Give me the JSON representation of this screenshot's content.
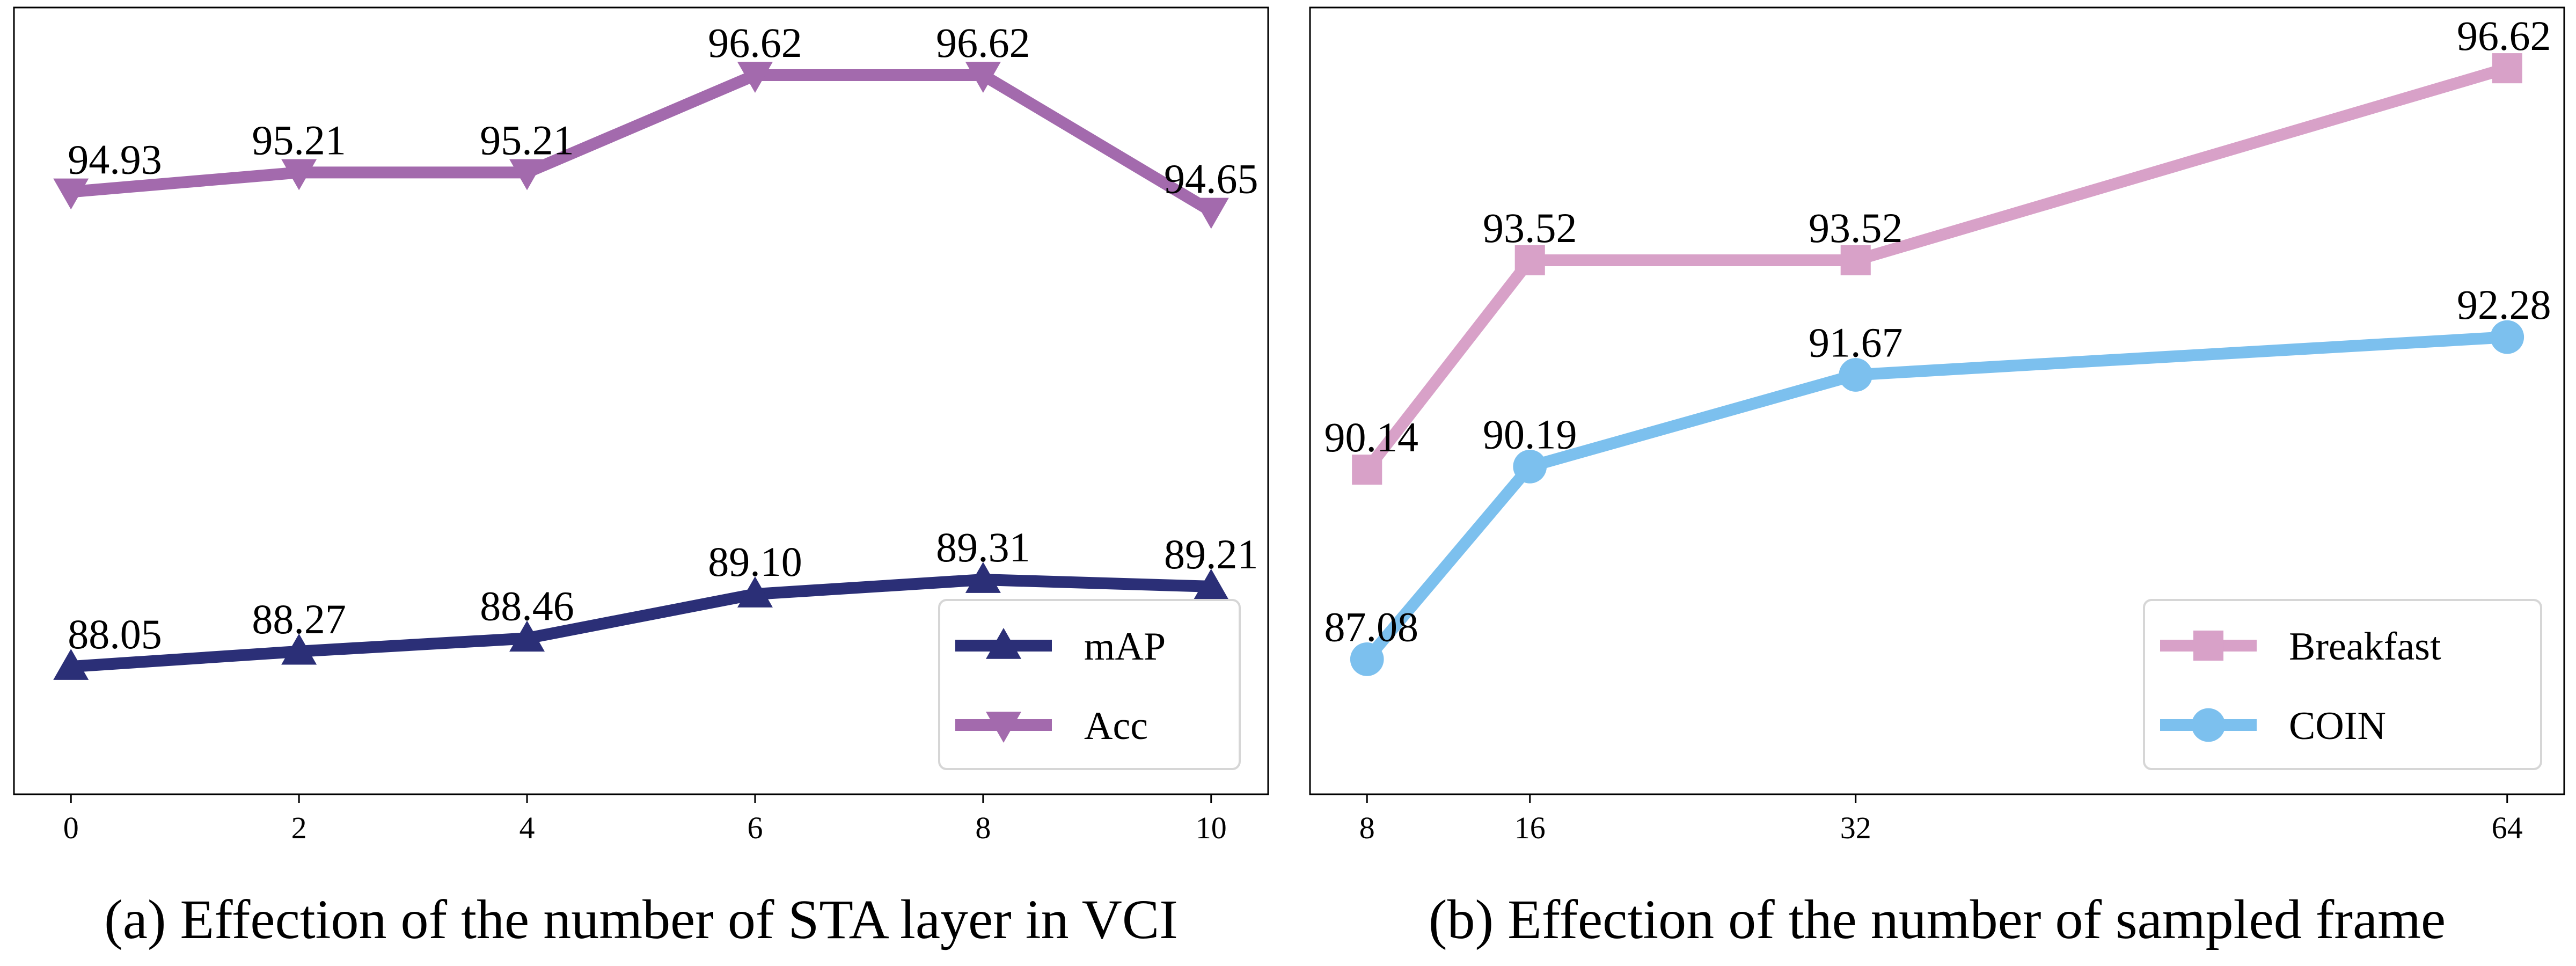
{
  "chart_data": [
    {
      "type": "line",
      "caption": "(a) Effection of the number of STA layer in VCI",
      "x": [
        0,
        2,
        4,
        6,
        8,
        10
      ],
      "xlim": [
        -0.5,
        10.5
      ],
      "ylim": [
        86.2,
        97.6
      ],
      "grid": false,
      "legend_position": "lower-right",
      "series": [
        {
          "name": "mAP",
          "color": "#2b2f77",
          "marker": "triangle-up",
          "values": [
            88.05,
            88.27,
            88.46,
            89.1,
            89.31,
            89.21
          ],
          "labels": [
            "88.05",
            "88.27",
            "88.46",
            "89.10",
            "89.31",
            "89.21"
          ]
        },
        {
          "name": "Acc",
          "color": "#a36aad",
          "marker": "triangle-down",
          "values": [
            94.93,
            95.21,
            95.21,
            96.62,
            96.62,
            94.65
          ],
          "labels": [
            "94.93",
            "95.21",
            "95.21",
            "96.62",
            "96.62",
            "94.65"
          ]
        }
      ]
    },
    {
      "type": "line",
      "caption": "(b) Effection of the number of sampled frame",
      "x": [
        8,
        16,
        32,
        64
      ],
      "xlim": [
        5.2,
        66.8
      ],
      "ylim": [
        84.9,
        97.6
      ],
      "grid": false,
      "legend_position": "lower-right",
      "series": [
        {
          "name": "Breakfast",
          "color": "#d8a1c8",
          "marker": "square",
          "values": [
            90.14,
            93.52,
            93.52,
            96.62
          ],
          "labels": [
            "90.14",
            "93.52",
            "93.52",
            "96.62"
          ]
        },
        {
          "name": "COIN",
          "color": "#7cc0ee",
          "marker": "circle",
          "values": [
            87.08,
            90.19,
            91.67,
            92.28
          ],
          "labels": [
            "87.08",
            "90.19",
            "91.67",
            "92.28"
          ]
        }
      ]
    }
  ]
}
